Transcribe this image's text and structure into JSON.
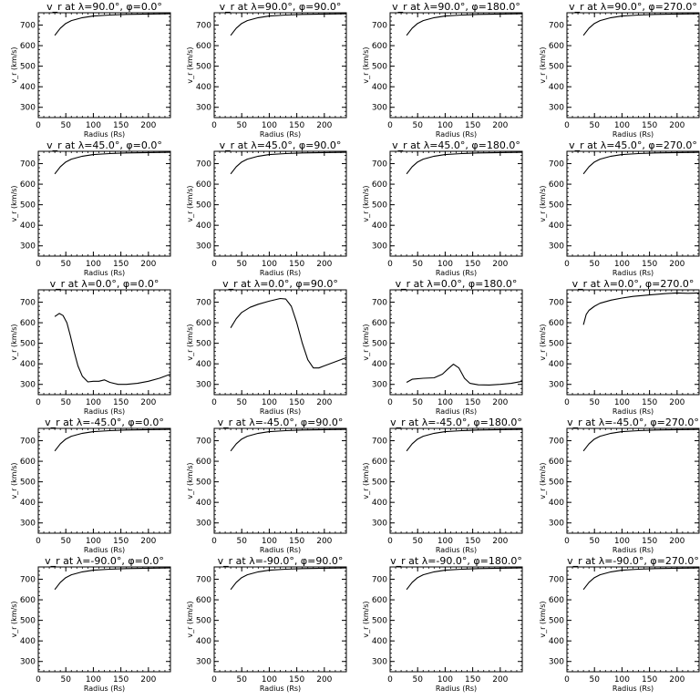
{
  "chart_data": [
    {
      "type": "line",
      "title": "v_r at λ=90.0°, φ=0.0°",
      "xlabel": "Radius (Rs)",
      "ylabel": "v_r (km/s)",
      "xlim": [
        0,
        240
      ],
      "ylim": [
        250,
        760
      ],
      "xticks": [
        0,
        50,
        100,
        150,
        200
      ],
      "yticks": [
        300,
        400,
        500,
        600,
        700
      ],
      "x": [
        30,
        40,
        50,
        60,
        80,
        100,
        130,
        160,
        200,
        240
      ],
      "y": [
        650,
        685,
        708,
        722,
        736,
        744,
        749,
        752,
        754,
        755
      ]
    },
    {
      "type": "line",
      "title": "v_r at λ=90.0°, φ=90.0°",
      "xlabel": "Radius (Rs)",
      "ylabel": "v_r (km/s)",
      "xlim": [
        0,
        240
      ],
      "ylim": [
        250,
        760
      ],
      "xticks": [
        0,
        50,
        100,
        150,
        200
      ],
      "yticks": [
        300,
        400,
        500,
        600,
        700
      ],
      "x": [
        30,
        40,
        50,
        60,
        80,
        100,
        130,
        160,
        200,
        240
      ],
      "y": [
        650,
        685,
        708,
        722,
        736,
        744,
        749,
        752,
        754,
        755
      ]
    },
    {
      "type": "line",
      "title": "v_r at λ=90.0°, φ=180.0°",
      "xlabel": "Radius (Rs)",
      "ylabel": "v_r (km/s)",
      "xlim": [
        0,
        240
      ],
      "ylim": [
        250,
        760
      ],
      "xticks": [
        0,
        50,
        100,
        150,
        200
      ],
      "yticks": [
        300,
        400,
        500,
        600,
        700
      ],
      "x": [
        30,
        40,
        50,
        60,
        80,
        100,
        130,
        160,
        200,
        240
      ],
      "y": [
        650,
        685,
        708,
        722,
        736,
        744,
        749,
        752,
        754,
        755
      ]
    },
    {
      "type": "line",
      "title": "v_r at λ=90.0°, φ=270.0°",
      "xlabel": "Radius (Rs)",
      "ylabel": "v_r (km/s)",
      "xlim": [
        0,
        240
      ],
      "ylim": [
        250,
        760
      ],
      "xticks": [
        0,
        50,
        100,
        150,
        200
      ],
      "yticks": [
        300,
        400,
        500,
        600,
        700
      ],
      "x": [
        30,
        40,
        50,
        60,
        80,
        100,
        130,
        160,
        200,
        240
      ],
      "y": [
        650,
        685,
        708,
        722,
        736,
        744,
        749,
        752,
        754,
        755
      ]
    },
    {
      "type": "line",
      "title": "v_r at λ=45.0°, φ=0.0°",
      "xlabel": "Radius (Rs)",
      "ylabel": "v_r (km/s)",
      "xlim": [
        0,
        240
      ],
      "ylim": [
        250,
        760
      ],
      "xticks": [
        0,
        50,
        100,
        150,
        200
      ],
      "yticks": [
        300,
        400,
        500,
        600,
        700
      ],
      "x": [
        30,
        40,
        50,
        60,
        80,
        100,
        130,
        160,
        200,
        240
      ],
      "y": [
        650,
        685,
        708,
        722,
        736,
        744,
        749,
        752,
        754,
        755
      ]
    },
    {
      "type": "line",
      "title": "v_r at λ=45.0°, φ=90.0°",
      "xlabel": "Radius (Rs)",
      "ylabel": "v_r (km/s)",
      "xlim": [
        0,
        240
      ],
      "ylim": [
        250,
        760
      ],
      "xticks": [
        0,
        50,
        100,
        150,
        200
      ],
      "yticks": [
        300,
        400,
        500,
        600,
        700
      ],
      "x": [
        30,
        40,
        50,
        60,
        80,
        100,
        130,
        160,
        200,
        240
      ],
      "y": [
        650,
        685,
        708,
        722,
        736,
        744,
        749,
        752,
        754,
        755
      ]
    },
    {
      "type": "line",
      "title": "v_r at λ=45.0°, φ=180.0°",
      "xlabel": "Radius (Rs)",
      "ylabel": "v_r (km/s)",
      "xlim": [
        0,
        240
      ],
      "ylim": [
        250,
        760
      ],
      "xticks": [
        0,
        50,
        100,
        150,
        200
      ],
      "yticks": [
        300,
        400,
        500,
        600,
        700
      ],
      "x": [
        30,
        40,
        50,
        60,
        80,
        100,
        130,
        160,
        200,
        240
      ],
      "y": [
        650,
        685,
        708,
        722,
        736,
        744,
        749,
        752,
        754,
        755
      ]
    },
    {
      "type": "line",
      "title": "v_r at λ=45.0°, φ=270.0°",
      "xlabel": "Radius (Rs)",
      "ylabel": "v_r (km/s)",
      "xlim": [
        0,
        240
      ],
      "ylim": [
        250,
        760
      ],
      "xticks": [
        0,
        50,
        100,
        150,
        200
      ],
      "yticks": [
        300,
        400,
        500,
        600,
        700
      ],
      "x": [
        30,
        40,
        50,
        60,
        80,
        100,
        130,
        160,
        200,
        240
      ],
      "y": [
        650,
        685,
        708,
        722,
        736,
        744,
        749,
        752,
        754,
        755
      ]
    },
    {
      "type": "line",
      "title": "v_r at λ=0.0°, φ=0.0°",
      "xlabel": "Radius (Rs)",
      "ylabel": "v_r (km/s)",
      "xlim": [
        0,
        240
      ],
      "ylim": [
        250,
        760
      ],
      "xticks": [
        0,
        50,
        100,
        150,
        200
      ],
      "yticks": [
        300,
        400,
        500,
        600,
        700
      ],
      "x": [
        30,
        38,
        45,
        52,
        58,
        65,
        72,
        80,
        90,
        100,
        110,
        120,
        130,
        145,
        160,
        180,
        200,
        220,
        240
      ],
      "y": [
        630,
        645,
        635,
        600,
        540,
        460,
        390,
        340,
        312,
        315,
        315,
        322,
        310,
        300,
        300,
        305,
        315,
        330,
        350
      ]
    },
    {
      "type": "line",
      "title": "v_r at λ=0.0°, φ=90.0°",
      "xlabel": "Radius (Rs)",
      "ylabel": "v_r (km/s)",
      "xlim": [
        0,
        240
      ],
      "ylim": [
        250,
        760
      ],
      "xticks": [
        0,
        50,
        100,
        150,
        200
      ],
      "yticks": [
        300,
        400,
        500,
        600,
        700
      ],
      "x": [
        30,
        40,
        50,
        65,
        80,
        100,
        120,
        130,
        140,
        150,
        160,
        170,
        180,
        190,
        200,
        220,
        240
      ],
      "y": [
        575,
        620,
        650,
        675,
        690,
        705,
        718,
        715,
        680,
        600,
        500,
        420,
        380,
        380,
        390,
        410,
        430
      ]
    },
    {
      "type": "line",
      "title": "v_r at λ=0.0°, φ=180.0°",
      "xlabel": "Radius (Rs)",
      "ylabel": "v_r (km/s)",
      "xlim": [
        0,
        240
      ],
      "ylim": [
        250,
        760
      ],
      "xticks": [
        0,
        50,
        100,
        150,
        200
      ],
      "yticks": [
        300,
        400,
        500,
        600,
        700
      ],
      "x": [
        30,
        40,
        60,
        80,
        95,
        105,
        115,
        125,
        135,
        145,
        160,
        180,
        200,
        220,
        240
      ],
      "y": [
        310,
        325,
        330,
        332,
        350,
        375,
        398,
        380,
        330,
        305,
        298,
        297,
        300,
        305,
        315
      ]
    },
    {
      "type": "line",
      "title": "v_r at λ=0.0°, φ=270.0°",
      "xlabel": "Radius (Rs)",
      "ylabel": "v_r (km/s)",
      "xlim": [
        0,
        240
      ],
      "ylim": [
        250,
        760
      ],
      "xticks": [
        0,
        50,
        100,
        150,
        200
      ],
      "yticks": [
        300,
        400,
        500,
        600,
        700
      ],
      "x": [
        30,
        35,
        40,
        50,
        60,
        80,
        100,
        120,
        150,
        180,
        200,
        220,
        240
      ],
      "y": [
        590,
        640,
        660,
        680,
        695,
        710,
        720,
        728,
        735,
        742,
        745,
        743,
        745
      ]
    },
    {
      "type": "line",
      "title": "v_r at λ=-45.0°, φ=0.0°",
      "xlabel": "Radius (Rs)",
      "ylabel": "v_r (km/s)",
      "xlim": [
        0,
        240
      ],
      "ylim": [
        250,
        760
      ],
      "xticks": [
        0,
        50,
        100,
        150,
        200
      ],
      "yticks": [
        300,
        400,
        500,
        600,
        700
      ],
      "x": [
        30,
        40,
        50,
        60,
        80,
        100,
        130,
        160,
        200,
        240
      ],
      "y": [
        650,
        685,
        708,
        722,
        736,
        744,
        749,
        752,
        754,
        755
      ]
    },
    {
      "type": "line",
      "title": "v_r at λ=-45.0°, φ=90.0°",
      "xlabel": "Radius (Rs)",
      "ylabel": "v_r (km/s)",
      "xlim": [
        0,
        240
      ],
      "ylim": [
        250,
        760
      ],
      "xticks": [
        0,
        50,
        100,
        150,
        200
      ],
      "yticks": [
        300,
        400,
        500,
        600,
        700
      ],
      "x": [
        30,
        40,
        50,
        60,
        80,
        100,
        130,
        160,
        200,
        240
      ],
      "y": [
        650,
        685,
        708,
        722,
        736,
        744,
        749,
        752,
        754,
        755
      ]
    },
    {
      "type": "line",
      "title": "v_r at λ=-45.0°, φ=180.0°",
      "xlabel": "Radius (Rs)",
      "ylabel": "v_r (km/s)",
      "xlim": [
        0,
        240
      ],
      "ylim": [
        250,
        760
      ],
      "xticks": [
        0,
        50,
        100,
        150,
        200
      ],
      "yticks": [
        300,
        400,
        500,
        600,
        700
      ],
      "x": [
        30,
        40,
        50,
        60,
        80,
        100,
        130,
        160,
        200,
        240
      ],
      "y": [
        650,
        685,
        708,
        722,
        736,
        744,
        749,
        752,
        754,
        755
      ]
    },
    {
      "type": "line",
      "title": "v_r at λ=-45.0°, φ=270.0°",
      "xlabel": "Radius (Rs)",
      "ylabel": "v_r (km/s)",
      "xlim": [
        0,
        240
      ],
      "ylim": [
        250,
        760
      ],
      "xticks": [
        0,
        50,
        100,
        150,
        200
      ],
      "yticks": [
        300,
        400,
        500,
        600,
        700
      ],
      "x": [
        30,
        40,
        50,
        60,
        80,
        100,
        130,
        160,
        200,
        240
      ],
      "y": [
        650,
        685,
        708,
        722,
        736,
        744,
        749,
        752,
        754,
        755
      ]
    },
    {
      "type": "line",
      "title": "v_r at λ=-90.0°, φ=0.0°",
      "xlabel": "Radius (Rs)",
      "ylabel": "v_r (km/s)",
      "xlim": [
        0,
        240
      ],
      "ylim": [
        250,
        760
      ],
      "xticks": [
        0,
        50,
        100,
        150,
        200
      ],
      "yticks": [
        300,
        400,
        500,
        600,
        700
      ],
      "x": [
        30,
        40,
        50,
        60,
        80,
        100,
        130,
        160,
        200,
        240
      ],
      "y": [
        650,
        685,
        708,
        722,
        736,
        744,
        749,
        752,
        754,
        755
      ]
    },
    {
      "type": "line",
      "title": "v_r at λ=-90.0°, φ=90.0°",
      "xlabel": "Radius (Rs)",
      "ylabel": "v_r (km/s)",
      "xlim": [
        0,
        240
      ],
      "ylim": [
        250,
        760
      ],
      "xticks": [
        0,
        50,
        100,
        150,
        200
      ],
      "yticks": [
        300,
        400,
        500,
        600,
        700
      ],
      "x": [
        30,
        40,
        50,
        60,
        80,
        100,
        130,
        160,
        200,
        240
      ],
      "y": [
        650,
        685,
        708,
        722,
        736,
        744,
        749,
        752,
        754,
        755
      ]
    },
    {
      "type": "line",
      "title": "v_r at λ=-90.0°, φ=180.0°",
      "xlabel": "Radius (Rs)",
      "ylabel": "v_r (km/s)",
      "xlim": [
        0,
        240
      ],
      "ylim": [
        250,
        760
      ],
      "xticks": [
        0,
        50,
        100,
        150,
        200
      ],
      "yticks": [
        300,
        400,
        500,
        600,
        700
      ],
      "x": [
        30,
        40,
        50,
        60,
        80,
        100,
        130,
        160,
        200,
        240
      ],
      "y": [
        650,
        685,
        708,
        722,
        736,
        744,
        749,
        752,
        754,
        755
      ]
    },
    {
      "type": "line",
      "title": "v_r at λ=-90.0°, φ=270.0°",
      "xlabel": "Radius (Rs)",
      "ylabel": "v_r (km/s)",
      "xlim": [
        0,
        240
      ],
      "ylim": [
        250,
        760
      ],
      "xticks": [
        0,
        50,
        100,
        150,
        200
      ],
      "yticks": [
        300,
        400,
        500,
        600,
        700
      ],
      "x": [
        30,
        40,
        50,
        60,
        80,
        100,
        130,
        160,
        200,
        240
      ],
      "y": [
        650,
        685,
        708,
        722,
        736,
        744,
        749,
        752,
        754,
        755
      ]
    }
  ]
}
